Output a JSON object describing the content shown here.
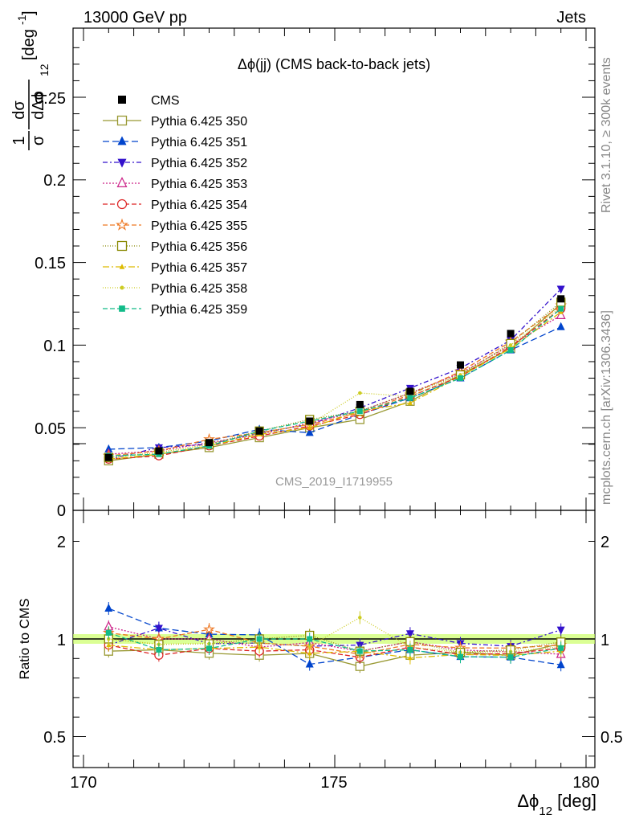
{
  "header": {
    "left": "13000 GeV pp",
    "right": "Jets"
  },
  "side_labels": {
    "rivet": "Rivet 3.1.10, ≥ 300k events",
    "mcplots": "mcplots.cern.ch [arXiv:1306.3436]"
  },
  "chart_data": {
    "type": "line",
    "title": "Δϕ(jj) (CMS back-to-back jets)",
    "watermark": "CMS_2019_I1719955",
    "xlabel": "Δϕ12 [deg]",
    "ylabel": "1/σ dσ/dΔϕ12 [deg⁻¹]",
    "ylabel_parts": {
      "top": "1",
      "frac_num": "dσ",
      "frac_den": "σ dΔϕ",
      "sub": "12",
      "unit": "[deg",
      "exp": "-1",
      "close": "]"
    },
    "xlabel_parts": {
      "main": "Δϕ",
      "sub": "12",
      "unit": "[deg]"
    },
    "xlim": [
      170,
      180
    ],
    "ylim": [
      0,
      0.3
    ],
    "x_ticks": [
      "170",
      "175",
      "180"
    ],
    "y_ticks": [
      "0",
      "0.05",
      "0.1",
      "0.15",
      "0.2",
      "0.25"
    ],
    "ratio_ylabel": "Ratio to CMS",
    "ratio_ylim": [
      0.3,
      2.3
    ],
    "ratio_ticks": [
      "0.5",
      "1",
      "2"
    ],
    "x": [
      170.5,
      171.5,
      172.5,
      173.5,
      174.5,
      175.5,
      176.5,
      177.5,
      178.5,
      179.5
    ],
    "data": {
      "name": "CMS",
      "color": "#000000",
      "values": [
        0.032,
        0.036,
        0.041,
        0.048,
        0.054,
        0.064,
        0.072,
        0.088,
        0.107,
        0.128
      ]
    },
    "series": [
      {
        "name": "Pythia 6.425 350",
        "color": "#999933",
        "marker": "square-open",
        "dash": "solid",
        "values": [
          0.03,
          0.034,
          0.038,
          0.044,
          0.05,
          0.055,
          0.066,
          0.082,
          0.098,
          0.125
        ]
      },
      {
        "name": "Pythia 6.425 351",
        "color": "#0044cc",
        "marker": "triangle-up",
        "dash": "8,4",
        "values": [
          0.037,
          0.038,
          0.042,
          0.049,
          0.047,
          0.058,
          0.068,
          0.08,
          0.097,
          0.111
        ]
      },
      {
        "name": "Pythia 6.425 352",
        "color": "#3311cc",
        "marker": "triangle-down",
        "dash": "6,3,2,3",
        "values": [
          0.031,
          0.038,
          0.04,
          0.047,
          0.052,
          0.062,
          0.074,
          0.086,
          0.103,
          0.134
        ]
      },
      {
        "name": "Pythia 6.425 353",
        "color": "#cc2288",
        "marker": "triangle-open",
        "dash": "2,2",
        "values": [
          0.034,
          0.036,
          0.041,
          0.046,
          0.053,
          0.06,
          0.071,
          0.083,
          0.1,
          0.118
        ]
      },
      {
        "name": "Pythia 6.425 354",
        "color": "#dd2222",
        "marker": "circle-open",
        "dash": "6,3",
        "values": [
          0.031,
          0.033,
          0.039,
          0.045,
          0.051,
          0.058,
          0.069,
          0.081,
          0.099,
          0.122
        ]
      },
      {
        "name": "Pythia 6.425 355",
        "color": "#ee7722",
        "marker": "star-open",
        "dash": "6,3",
        "values": [
          0.033,
          0.036,
          0.043,
          0.047,
          0.052,
          0.059,
          0.07,
          0.084,
          0.102,
          0.124
        ]
      },
      {
        "name": "Pythia 6.425 356",
        "color": "#888800",
        "marker": "square-open",
        "dash": "1,2",
        "values": [
          0.032,
          0.035,
          0.04,
          0.048,
          0.055,
          0.06,
          0.071,
          0.082,
          0.101,
          0.126
        ]
      },
      {
        "name": "Pythia 6.425 357",
        "color": "#ddbb00",
        "marker": "tri-small",
        "dash": "8,3,2,3",
        "values": [
          0.031,
          0.034,
          0.039,
          0.046,
          0.05,
          0.06,
          0.065,
          0.081,
          0.098,
          0.12
        ]
      },
      {
        "name": "Pythia 6.425 358",
        "color": "#cccc22",
        "marker": "dot",
        "dash": "1,2",
        "values": [
          0.032,
          0.035,
          0.04,
          0.047,
          0.052,
          0.071,
          0.069,
          0.082,
          0.1,
          0.123
        ]
      },
      {
        "name": "Pythia 6.425 359",
        "color": "#11bb88",
        "marker": "square-filled",
        "dash": "6,3",
        "values": [
          0.033,
          0.034,
          0.039,
          0.048,
          0.054,
          0.06,
          0.068,
          0.08,
          0.097,
          0.122
        ]
      }
    ],
    "grid": false,
    "legend_position": "top-left"
  }
}
